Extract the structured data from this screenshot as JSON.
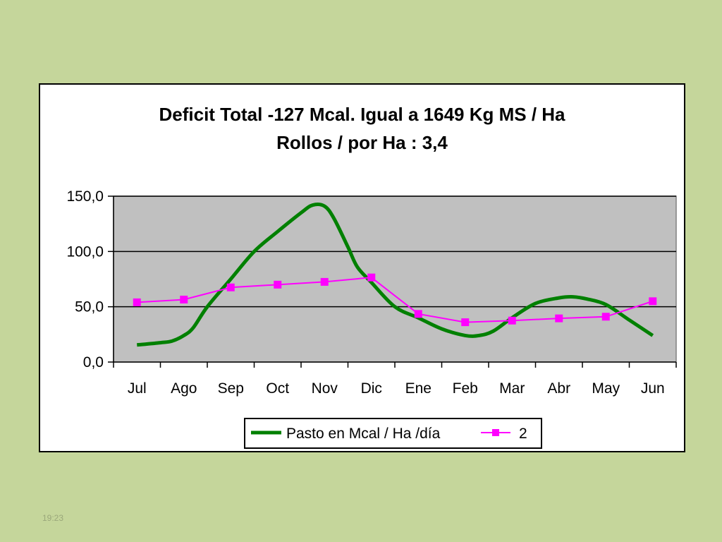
{
  "chart_data": {
    "type": "line",
    "title_line1": "Deficit Total -127 Mcal. Igual a 1649 Kg MS / Ha",
    "title_line2": "Rollos / por Ha : 3,4",
    "categories": [
      "Jul",
      "Ago",
      "Sep",
      "Oct",
      "Nov",
      "Dic",
      "Ene",
      "Feb",
      "Mar",
      "Abr",
      "May",
      "Jun"
    ],
    "ylim": [
      0,
      150
    ],
    "yticks": [
      "0,0",
      "50,0",
      "100,0",
      "150,0"
    ],
    "grid": true,
    "plot_background": "#c0c0c0",
    "legend_position": "bottom",
    "series": [
      {
        "name": "Pasto en Mcal / Ha /día",
        "color": "#008000",
        "smooth": true,
        "x": [
          0,
          0.5,
          0.75,
          1,
          1.2,
          1.5,
          2,
          2.5,
          3,
          3.5,
          3.75,
          4,
          4.2,
          4.5,
          4.7,
          5,
          5.5,
          6,
          6.5,
          7,
          7.3,
          7.6,
          8,
          8.5,
          9,
          9.3,
          9.6,
          10,
          10.5,
          11
        ],
        "values": [
          15.5,
          17.5,
          19,
          24,
          31,
          50,
          75,
          100,
          118,
          135,
          142,
          141,
          130,
          104,
          86,
          72,
          50,
          40,
          30,
          24,
          24,
          28,
          40,
          53,
          58,
          59,
          57,
          52,
          38,
          24
        ]
      },
      {
        "name": "2",
        "color": "#ff00ff",
        "marker": "square",
        "values": [
          54,
          56.5,
          67.5,
          70,
          72.5,
          76.5,
          43.5,
          36,
          37.5,
          39.5,
          41,
          55
        ]
      }
    ]
  },
  "footer": {
    "time": "19:23"
  }
}
